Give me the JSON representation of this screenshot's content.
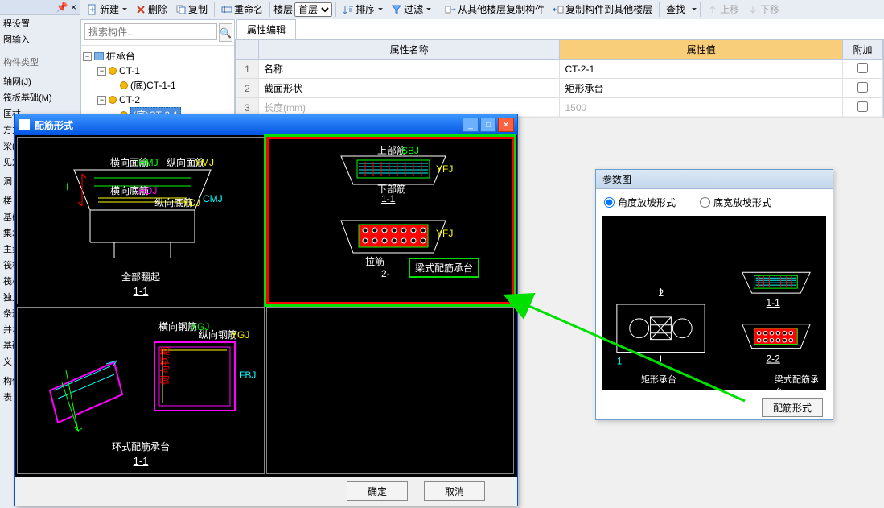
{
  "toolbar": {
    "new": "新建",
    "delete": "删除",
    "copy": "复制",
    "rename": "重命名",
    "floor_label": "楼层",
    "floor_value": "首层",
    "sort": "排序",
    "filter": "过滤",
    "copyFromFloor": "从其他楼层复制构件",
    "copyToFloor": "复制构件到其他楼层",
    "find": "查找",
    "moveUp": "上移",
    "moveDown": "下移"
  },
  "leftPanel": {
    "tab1": "程设置",
    "tab2": "图输入",
    "sectionA": "构件类型",
    "items": [
      "轴网(J)",
      "筏板基础(M)",
      "匡柱",
      "方力",
      "梁(J)",
      "见定",
      "",
      "洞",
      "",
      "楼",
      "基础",
      "集水",
      "主垫",
      "筏板",
      "筏板",
      "独立",
      "条形",
      "并承",
      "基础",
      "义",
      "",
      "构件",
      "表"
    ]
  },
  "search": {
    "placeholder": "搜索构件..."
  },
  "tree": {
    "root": "桩承台",
    "nodes": [
      {
        "label": "CT-1",
        "children": [
          {
            "label": "(底)CT-1-1"
          }
        ]
      },
      {
        "label": "CT-2",
        "children": [
          {
            "label": "(底)CT-2-1",
            "selected": true
          }
        ]
      }
    ]
  },
  "propTab": "属性编辑",
  "propHeaders": {
    "name": "属性名称",
    "value": "属性值",
    "add": "附加"
  },
  "propRows": [
    {
      "n": "1",
      "name": "名称",
      "value": "CT-2-1",
      "dim": false
    },
    {
      "n": "2",
      "name": "截面形状",
      "value": "矩形承台",
      "dim": false
    },
    {
      "n": "3",
      "name": "长度(mm)",
      "value": "1500",
      "dim": true
    }
  ],
  "dialog": {
    "title": "配筋形式",
    "panels": [
      {
        "caption": "全部翻起",
        "sub": "1-1"
      },
      {
        "caption": "",
        "sub": "1-1",
        "badge": "梁式配筋承台",
        "highlighted": true
      },
      {
        "caption": "环式配筋承台",
        "sub": "1-1"
      },
      {
        "caption": "",
        "sub": ""
      }
    ],
    "ok": "确定",
    "cancel": "取消"
  },
  "param": {
    "title": "参数图",
    "opt1": "角度放坡形式",
    "opt2": "底宽放坡形式",
    "label1": "矩形承台",
    "label2": "梁式配筋承台",
    "sub1": "1-1",
    "sub2": "2-2",
    "btn": "配筋形式"
  },
  "colors": {
    "toolbar_bg": "#e8ecf3",
    "border": "#bcc7d8",
    "title_grad1": "#3d95ff",
    "title_grad2": "#0054e3",
    "highlight_red": "#ff0000",
    "highlight_green": "#00e000",
    "prop_val_hdr": "#f9ce7a",
    "arrow": "#00e000"
  }
}
